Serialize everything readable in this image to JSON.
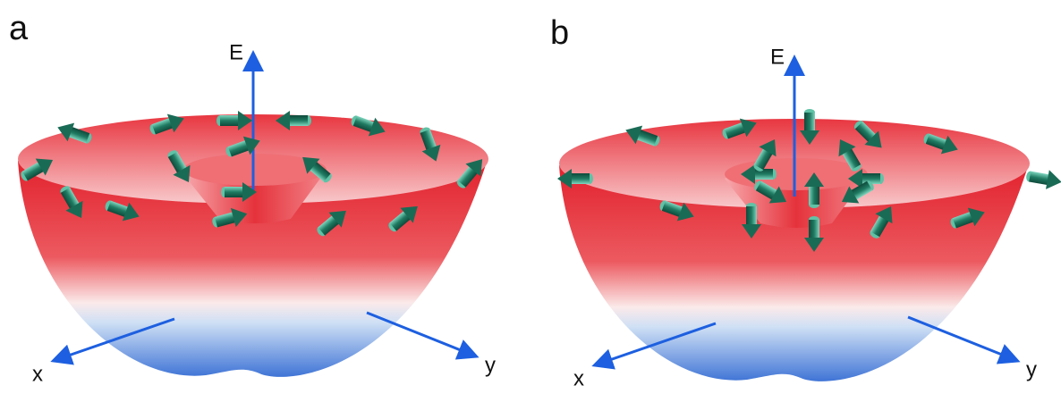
{
  "panels": [
    {
      "label": "a",
      "axes": {
        "energy": "E",
        "x": "x",
        "y": "y"
      }
    },
    {
      "label": "b",
      "axes": {
        "energy": "E",
        "x": "x",
        "y": "y"
      }
    }
  ]
}
